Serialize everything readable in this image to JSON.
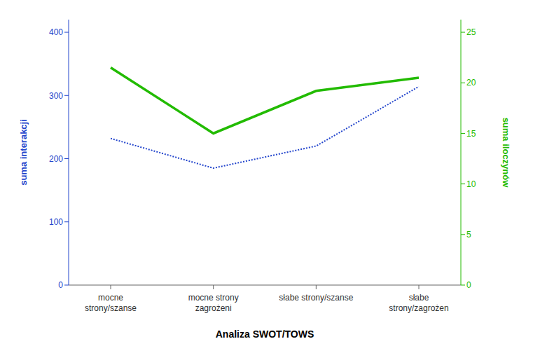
{
  "chart_data": {
    "type": "line",
    "categories": [
      "mocne\nstrony/szanse",
      "mocne strony\nzagrożeni",
      "słabe strony/szanse",
      "słabe\nstrony/zagrożen"
    ],
    "series": [
      {
        "color": "#2244cc",
        "values": [
          232,
          185,
          220,
          314
        ],
        "line_style": "dotted",
        "axis": "y"
      },
      {
        "color": "#22bb00",
        "values": [
          21.5,
          15.0,
          19.2,
          20.5
        ],
        "line_style": "solid",
        "axis": "y2"
      }
    ],
    "xlabel": "Analiza SWOT/TOWS",
    "ylabel": "suma interakcji",
    "y2label": "suma iloczynów",
    "ylim": [
      0,
      420
    ],
    "yticks": [
      0,
      100,
      200,
      300,
      400
    ],
    "y2lim": [
      0,
      26.25
    ],
    "y2ticks": [
      0,
      5,
      10,
      15,
      20,
      25
    ],
    "grid": false
  }
}
